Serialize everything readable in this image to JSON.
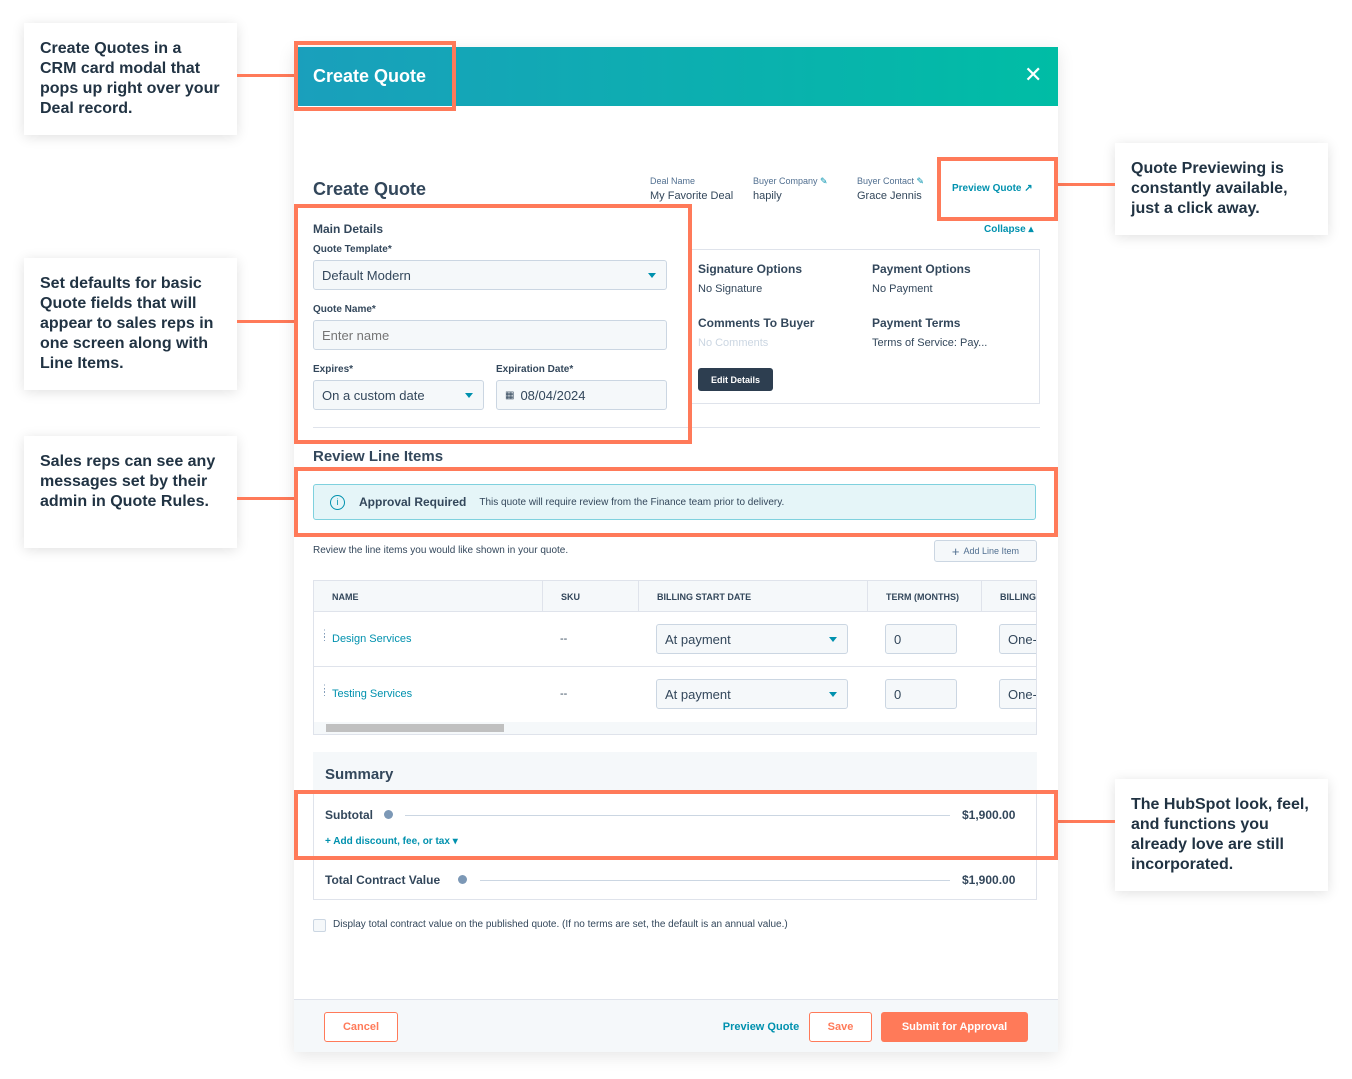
{
  "annotations": {
    "modal": "Create Quotes in a CRM card modal that pops up right over your Deal record.",
    "defaults": "Set defaults for basic Quote fields that will appear to sales reps in one screen along with Line Items.",
    "messages": "Sales reps can see any messages set by their admin in Quote Rules.",
    "preview": "Quote Previewing is constantly available, just a click away.",
    "lookfeel": "The HubSpot look, feel, and functions you already love are still incorporated."
  },
  "header": {
    "title": "Create Quote"
  },
  "page": {
    "title": "Create Quote"
  },
  "deal": {
    "deal_name_label": "Deal Name",
    "deal_name": "My Favorite Deal",
    "company_label": "Buyer Company",
    "company": "hapily",
    "contact_label": "Buyer Contact",
    "contact": "Grace Jennis",
    "preview": "Preview Quote",
    "collapse": "Collapse"
  },
  "main": {
    "heading": "Main Details",
    "template_label": "Quote Template*",
    "template_value": "Default Modern",
    "name_label": "Quote Name*",
    "name_placeholder": "Enter name",
    "expires_label": "Expires*",
    "expires_value": "On a custom date",
    "exp_date_label": "Expiration Date*",
    "exp_date_value": "08/04/2024"
  },
  "options": {
    "sig_label": "Signature Options",
    "sig_value": "No Signature",
    "pay_label": "Payment Options",
    "pay_value": "No Payment",
    "comments_label": "Comments To Buyer",
    "comments_value": "No Comments",
    "terms_label": "Payment Terms",
    "terms_value": "Terms of Service: Pay...",
    "edit": "Edit Details"
  },
  "line_items": {
    "heading": "Review Line Items",
    "alert_title": "Approval Required",
    "alert_text": "This quote will require review from the Finance team prior to delivery.",
    "instructions": "Review the line items you would like shown in your quote.",
    "add": "Add Line Item",
    "columns": [
      "NAME",
      "SKU",
      "BILLING START DATE",
      "TERM (MONTHS)",
      "BILLING"
    ],
    "rows": [
      {
        "name": "Design Services",
        "sku": "--",
        "start": "At payment",
        "term": "0",
        "billing": "One-t"
      },
      {
        "name": "Testing Services",
        "sku": "--",
        "start": "At payment",
        "term": "0",
        "billing": "One-t"
      }
    ]
  },
  "summary": {
    "heading": "Summary",
    "subtotal_label": "Subtotal",
    "subtotal": "$1,900.00",
    "add_discount": "+ Add discount, fee, or tax",
    "tcv_label": "Total Contract Value",
    "tcv": "$1,900.00",
    "checkbox_label": "Display total contract value on the published quote. (If no terms are set, the default is an annual value.)"
  },
  "footer": {
    "cancel": "Cancel",
    "preview": "Preview Quote",
    "save": "Save",
    "submit": "Submit for Approval"
  },
  "colors": {
    "accent": "#ff7a59",
    "teal": "#0091ae",
    "header_gradient": [
      "#1a9fbc",
      "#00bda5"
    ]
  }
}
